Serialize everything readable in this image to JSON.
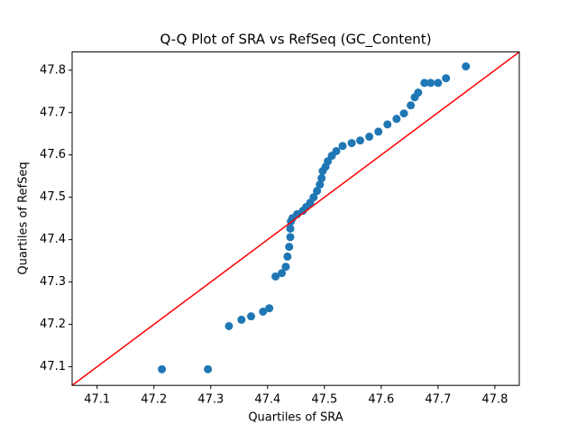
{
  "chart_data": {
    "type": "scatter",
    "title": "Q-Q Plot of SRA vs RefSeq (GC_Content)",
    "x_label": "Quartiles of SRA",
    "y_label": "Quartiles of RefSeq",
    "xlim": [
      47.056,
      47.843
    ],
    "ylim": [
      47.056,
      47.843
    ],
    "xticks": [
      47.1,
      47.2,
      47.3,
      47.4,
      47.5,
      47.6,
      47.7,
      47.8
    ],
    "yticks": [
      47.1,
      47.2,
      47.3,
      47.4,
      47.5,
      47.6,
      47.7,
      47.8
    ],
    "grid": false,
    "reference_line_color": "#ff0000",
    "series": [
      {
        "color": "#1f77b4",
        "x": [
          47.214,
          47.295,
          47.332,
          47.354,
          47.371,
          47.392,
          47.403,
          47.414,
          47.425,
          47.432,
          47.435,
          47.438,
          47.44,
          47.44,
          47.441,
          47.444,
          47.452,
          47.462,
          47.468,
          47.475,
          47.481,
          47.487,
          47.492,
          47.495,
          47.497,
          47.502,
          47.506,
          47.513,
          47.521,
          47.532,
          47.548,
          47.563,
          47.579,
          47.595,
          47.611,
          47.627,
          47.64,
          47.652,
          47.659,
          47.665,
          47.676,
          47.687,
          47.7,
          47.714,
          47.749
        ],
        "values": [
          47.094,
          47.094,
          47.196,
          47.211,
          47.219,
          47.23,
          47.238,
          47.313,
          47.321,
          47.336,
          47.36,
          47.383,
          47.406,
          47.426,
          47.443,
          47.451,
          47.46,
          47.468,
          47.477,
          47.487,
          47.5,
          47.515,
          47.53,
          47.545,
          47.562,
          47.572,
          47.585,
          47.598,
          47.609,
          47.621,
          47.628,
          47.634,
          47.643,
          47.655,
          47.672,
          47.685,
          47.698,
          47.717,
          47.736,
          47.747,
          47.77,
          47.77,
          47.77,
          47.781,
          47.809
        ]
      }
    ]
  }
}
